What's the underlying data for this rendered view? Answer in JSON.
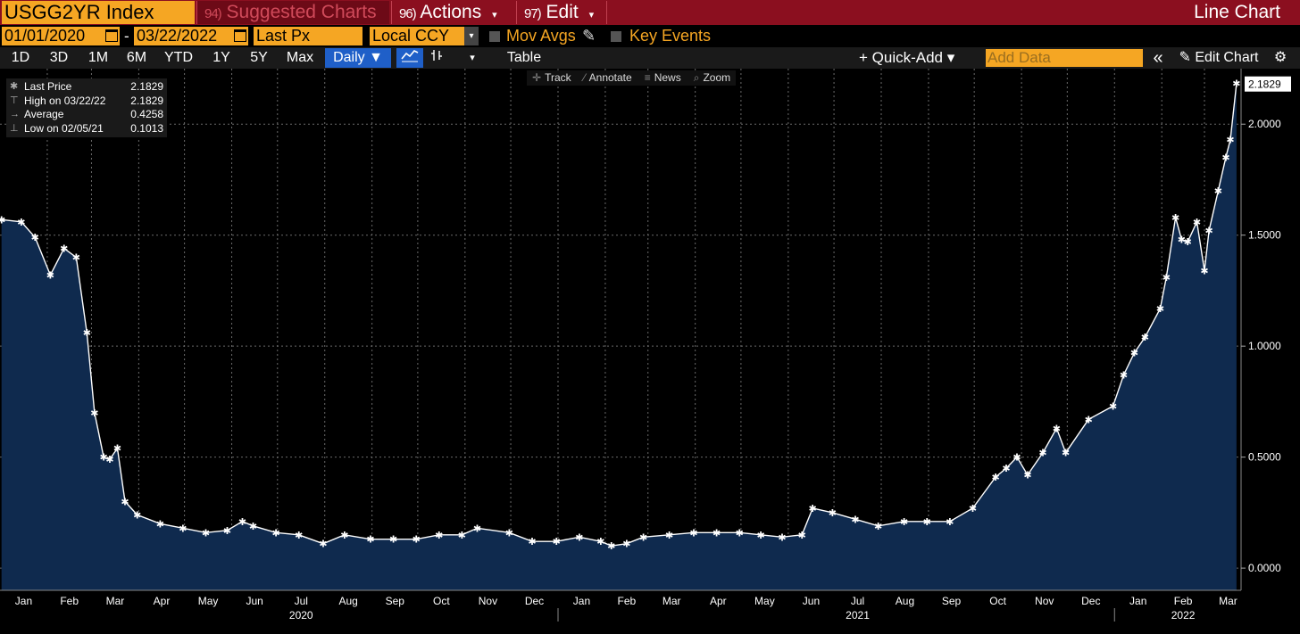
{
  "header": {
    "ticker": "USGG2YR Index",
    "menus": [
      {
        "num": "94)",
        "label": "Suggested Charts",
        "caret": ""
      },
      {
        "num": "96)",
        "label": "Actions",
        "caret": "▾"
      },
      {
        "num": "97)",
        "label": "Edit",
        "caret": "▾"
      }
    ],
    "title": "Line Chart"
  },
  "settings": {
    "start_date": "01/01/2020",
    "separator": "-",
    "end_date": "03/22/2022",
    "field": "Last Px",
    "currency": "Local CCY",
    "mov_avgs": "Mov Avgs",
    "key_events": "Key Events"
  },
  "toolbar": {
    "ranges": [
      "1D",
      "3D",
      "1M",
      "6M",
      "YTD",
      "1Y",
      "5Y",
      "Max"
    ],
    "frequency": "Daily ▼",
    "table": "Table",
    "quick_add": "+ Quick-Add ▾",
    "add_data_placeholder": "Add Data",
    "collapse": "«",
    "edit_chart": "Edit Chart",
    "gear": "⚙"
  },
  "chart_tools": [
    "Track",
    "Annotate",
    "News",
    "Zoom"
  ],
  "legend": [
    {
      "sym": "✱",
      "label": "Last Price",
      "value": "2.1829"
    },
    {
      "sym": "⊤",
      "label": "High on 03/22/22",
      "value": "2.1829"
    },
    {
      "sym": "→",
      "label": "Average",
      "value": "0.4258"
    },
    {
      "sym": "⊥",
      "label": "Low on 02/05/21",
      "value": "0.1013"
    }
  ],
  "colors": {
    "line": "#ffffff",
    "area": "#0f2a4e",
    "accent_orange": "#f5a623",
    "header_red": "#8b0f1f",
    "grid": "#6a6a6a",
    "selected_blue": "#1f5fc8"
  },
  "chart_data": {
    "type": "area",
    "title": "",
    "ylim": [
      -0.1,
      2.25
    ],
    "yticks": [
      "0.0000",
      "0.5000",
      "1.0000",
      "1.5000",
      "2.0000"
    ],
    "last_value_label": "2.1829",
    "month_labels": [
      "Jan",
      "Feb",
      "Mar",
      "Apr",
      "May",
      "Jun",
      "Jul",
      "Aug",
      "Sep",
      "Oct",
      "Nov",
      "Dec",
      "Jan",
      "Feb",
      "Mar",
      "Apr",
      "May",
      "Jun",
      "Jul",
      "Aug",
      "Sep",
      "Oct",
      "Nov",
      "Dec",
      "Jan",
      "Feb",
      "Mar"
    ],
    "year_labels": [
      {
        "label": "2020",
        "month_index": 6
      },
      {
        "label": "2021",
        "month_index": 18
      },
      {
        "label": "2022",
        "month_index": 25
      }
    ],
    "x": [
      "2020-01-02",
      "2020-01-15",
      "2020-01-24",
      "2020-02-03",
      "2020-02-12",
      "2020-02-20",
      "2020-02-27",
      "2020-03-03",
      "2020-03-09",
      "2020-03-13",
      "2020-03-18",
      "2020-03-23",
      "2020-03-31",
      "2020-04-15",
      "2020-04-30",
      "2020-05-15",
      "2020-05-29",
      "2020-06-08",
      "2020-06-15",
      "2020-06-30",
      "2020-07-15",
      "2020-07-31",
      "2020-08-14",
      "2020-08-31",
      "2020-09-15",
      "2020-09-30",
      "2020-10-15",
      "2020-10-30",
      "2020-11-09",
      "2020-11-30",
      "2020-12-15",
      "2020-12-31",
      "2021-01-15",
      "2021-01-29",
      "2021-02-05",
      "2021-02-15",
      "2021-02-26",
      "2021-03-15",
      "2021-03-31",
      "2021-04-15",
      "2021-04-30",
      "2021-05-14",
      "2021-05-28",
      "2021-06-10",
      "2021-06-17",
      "2021-06-30",
      "2021-07-15",
      "2021-07-30",
      "2021-08-16",
      "2021-08-31",
      "2021-09-15",
      "2021-09-30",
      "2021-10-15",
      "2021-10-22",
      "2021-10-29",
      "2021-11-05",
      "2021-11-15",
      "2021-11-24",
      "2021-11-30",
      "2021-12-15",
      "2021-12-31",
      "2022-01-07",
      "2022-01-14",
      "2022-01-21",
      "2022-01-31",
      "2022-02-04",
      "2022-02-10",
      "2022-02-14",
      "2022-02-18",
      "2022-02-24",
      "2022-03-01",
      "2022-03-04",
      "2022-03-10",
      "2022-03-15",
      "2022-03-18",
      "2022-03-22"
    ],
    "values": [
      1.57,
      1.56,
      1.49,
      1.32,
      1.44,
      1.4,
      1.06,
      0.7,
      0.5,
      0.49,
      0.54,
      0.3,
      0.24,
      0.2,
      0.18,
      0.16,
      0.17,
      0.21,
      0.19,
      0.16,
      0.15,
      0.11,
      0.15,
      0.13,
      0.13,
      0.13,
      0.15,
      0.15,
      0.18,
      0.16,
      0.12,
      0.12,
      0.14,
      0.12,
      0.1,
      0.11,
      0.14,
      0.15,
      0.16,
      0.16,
      0.16,
      0.15,
      0.14,
      0.15,
      0.27,
      0.25,
      0.22,
      0.19,
      0.21,
      0.21,
      0.21,
      0.27,
      0.41,
      0.45,
      0.5,
      0.42,
      0.52,
      0.63,
      0.52,
      0.67,
      0.73,
      0.87,
      0.97,
      1.04,
      1.17,
      1.31,
      1.58,
      1.48,
      1.47,
      1.56,
      1.34,
      1.52,
      1.7,
      1.85,
      1.93,
      2.1829
    ]
  }
}
